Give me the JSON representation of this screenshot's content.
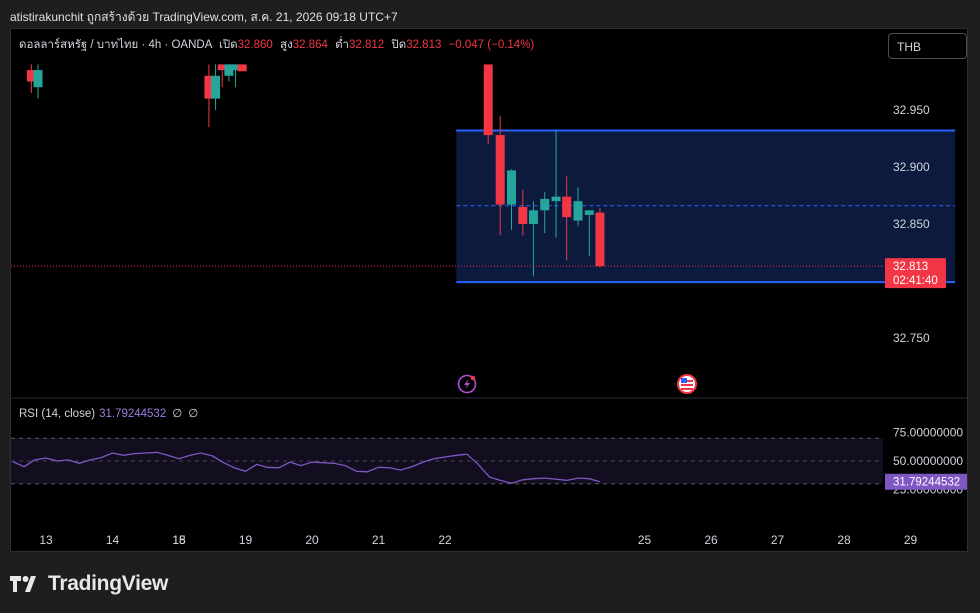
{
  "header": {
    "caption": "atistirakunchit ถูกสร้างด้วย TradingView.com, ส.ค. 21, 2026 09:18 UTC+7"
  },
  "legend": {
    "symbol": "ดอลลาร์สหรัฐ / บาทไทย · 4h · OANDA",
    "open_label": "เปิด",
    "open_value": "32.860",
    "high_label": "สูง",
    "high_value": "32.864",
    "low_label": "ต่ำ",
    "low_value": "32.812",
    "close_label": "ปิด",
    "close_value": "32.813",
    "change": "−0.047 (−0.14%)"
  },
  "currency_button": "THB",
  "price_badge": {
    "price": "32.813",
    "countdown": "02:41:40"
  },
  "rsi": {
    "label": "RSI (14, close)",
    "value": "31.79244532",
    "g1": "∅",
    "g2": "∅",
    "badge": "31.79244532"
  },
  "footer": {
    "brand": "TradingView"
  },
  "colors": {
    "up": "#26a69a",
    "down": "#f23645",
    "box_border": "#2962ff",
    "box_fill": "#0c1a3d",
    "rsi_line": "#7e57c2",
    "rsi_band": "#120d1f"
  },
  "icons": [
    "lightning-event-icon",
    "us-flag-event-icon"
  ],
  "chart_data": [
    {
      "type": "candlestick",
      "title": "",
      "x_ticks": [
        "13",
        "14",
        "15",
        "18",
        "19",
        "20",
        "21",
        "22",
        "25",
        "26",
        "27",
        "28",
        "29"
      ],
      "y_ticks": [
        "32.950",
        "32.900",
        "32.850",
        "32.750"
      ],
      "ylim": [
        32.72,
        32.99
      ],
      "grid": false,
      "candles": [
        {
          "x": 12.78,
          "o": 32.985,
          "h": 32.99,
          "l": 32.965,
          "c": 32.975
        },
        {
          "x": 12.88,
          "o": 32.97,
          "h": 32.99,
          "l": 32.96,
          "c": 32.985
        },
        {
          "x": 15.45,
          "o": 32.98,
          "h": 32.99,
          "l": 32.935,
          "c": 32.96
        },
        {
          "x": 15.55,
          "o": 32.96,
          "h": 32.99,
          "l": 32.95,
          "c": 32.98
        },
        {
          "x": 15.65,
          "o": 32.99,
          "h": 32.99,
          "l": 32.97,
          "c": 32.985
        },
        {
          "x": 15.75,
          "o": 32.98,
          "h": 32.99,
          "l": 32.975,
          "c": 32.99
        },
        {
          "x": 15.85,
          "o": 32.985,
          "h": 32.99,
          "l": 32.97,
          "c": 32.99
        },
        {
          "x": 15.95,
          "o": 32.99,
          "h": 32.99,
          "l": 32.984,
          "c": 32.984
        },
        {
          "x": 19.65,
          "o": 32.99,
          "h": 32.99,
          "l": 32.92,
          "c": 32.928
        },
        {
          "x": 19.83,
          "o": 32.928,
          "h": 32.945,
          "l": 32.84,
          "c": 32.867
        },
        {
          "x": 20.0,
          "o": 32.867,
          "h": 32.898,
          "l": 32.845,
          "c": 32.897
        },
        {
          "x": 20.17,
          "o": 32.865,
          "h": 32.88,
          "l": 32.84,
          "c": 32.85
        },
        {
          "x": 20.33,
          "o": 32.85,
          "h": 32.87,
          "l": 32.804,
          "c": 32.862
        },
        {
          "x": 20.5,
          "o": 32.862,
          "h": 32.878,
          "l": 32.842,
          "c": 32.872
        },
        {
          "x": 20.67,
          "o": 32.87,
          "h": 32.932,
          "l": 32.838,
          "c": 32.874
        },
        {
          "x": 20.83,
          "o": 32.874,
          "h": 32.892,
          "l": 32.818,
          "c": 32.856
        },
        {
          "x": 21.0,
          "o": 32.853,
          "h": 32.882,
          "l": 32.848,
          "c": 32.87
        },
        {
          "x": 21.17,
          "o": 32.858,
          "h": 32.862,
          "l": 32.822,
          "c": 32.862
        },
        {
          "x": 21.33,
          "o": 32.86,
          "h": 32.864,
          "l": 32.812,
          "c": 32.813
        }
      ],
      "range_box": {
        "x_start": 19.17,
        "x_end": 26.67,
        "top": 32.932,
        "bottom": 32.799,
        "mid": 32.866
      },
      "last_price": 32.813
    },
    {
      "type": "line",
      "title": "RSI (14, close)",
      "y_ticks": [
        "75.00000000",
        "50.00000000",
        "25.00000000"
      ],
      "ylim": [
        15,
        85
      ],
      "bands": [
        70,
        50,
        30
      ],
      "series": [
        {
          "name": "RSI (14, close)",
          "x": [
            12.5,
            12.67,
            12.83,
            13.0,
            13.17,
            13.33,
            13.5,
            13.67,
            13.83,
            14.0,
            14.17,
            14.33,
            14.5,
            14.67,
            14.83,
            15.0,
            15.17,
            15.33,
            15.5,
            15.67,
            15.83,
            16.0,
            16.17,
            16.33,
            16.5,
            16.67,
            16.83,
            17.0,
            17.17,
            17.33,
            17.5,
            17.67,
            17.83,
            18.0,
            18.17,
            18.33,
            18.5,
            18.67,
            18.83,
            19.0,
            19.17,
            19.33,
            19.5,
            19.67,
            19.83,
            20.0,
            20.17,
            20.33,
            20.5,
            20.67,
            20.83,
            21.0,
            21.17,
            21.33
          ],
          "y": [
            49.5,
            45,
            51,
            52.5,
            50,
            51,
            48,
            51,
            53,
            57,
            55,
            56.5,
            57,
            57.5,
            55,
            52,
            55,
            57,
            54.5,
            48.5,
            44,
            41,
            47,
            44.5,
            44,
            49,
            46,
            49,
            48.5,
            48,
            46,
            41,
            40.5,
            44.5,
            44,
            42,
            45,
            49,
            52,
            53.5,
            55,
            56,
            47,
            36,
            33,
            30.5,
            33.5,
            34.5,
            35,
            34,
            33,
            35,
            34.5,
            31.8
          ]
        }
      ]
    }
  ]
}
